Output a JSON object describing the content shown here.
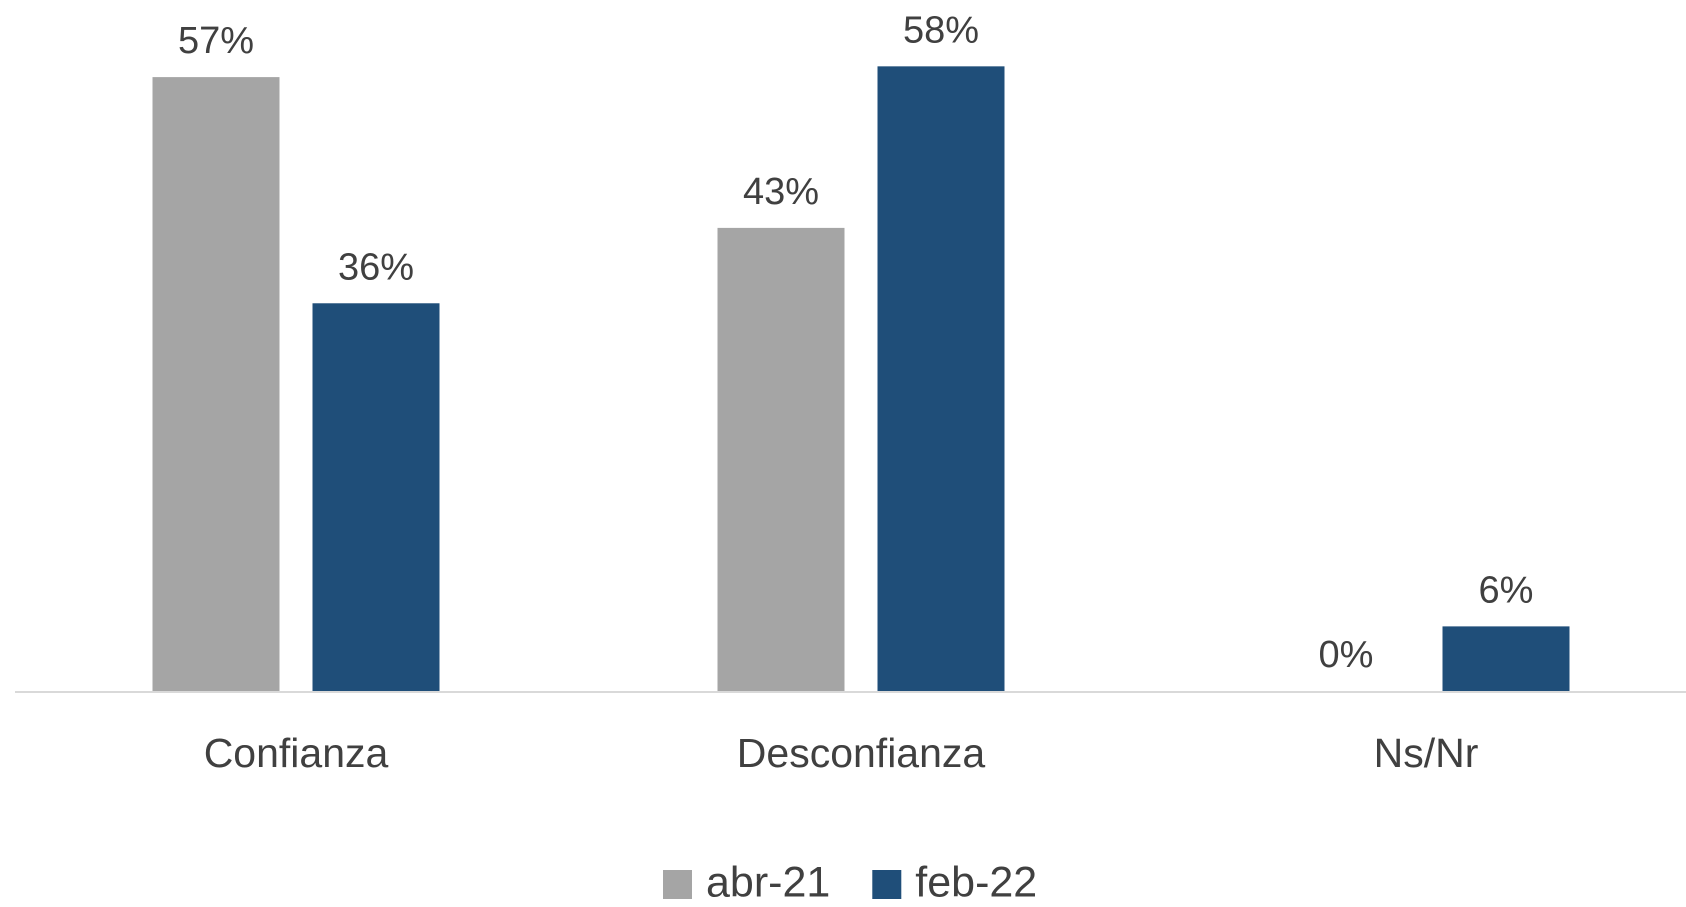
{
  "chart_data": {
    "type": "bar",
    "categories": [
      "Confianza",
      "Desconfianza",
      "Ns/Nr"
    ],
    "series": [
      {
        "name": "abr-21",
        "color": "#a5a5a5",
        "values": [
          57,
          43,
          0
        ],
        "value_labels": [
          "57%",
          "43%",
          "0%"
        ]
      },
      {
        "name": "feb-22",
        "color": "#1f4e79",
        "values": [
          36,
          58,
          6
        ],
        "value_labels": [
          "36%",
          "58%",
          "6%"
        ]
      }
    ],
    "legend": "bottom"
  }
}
